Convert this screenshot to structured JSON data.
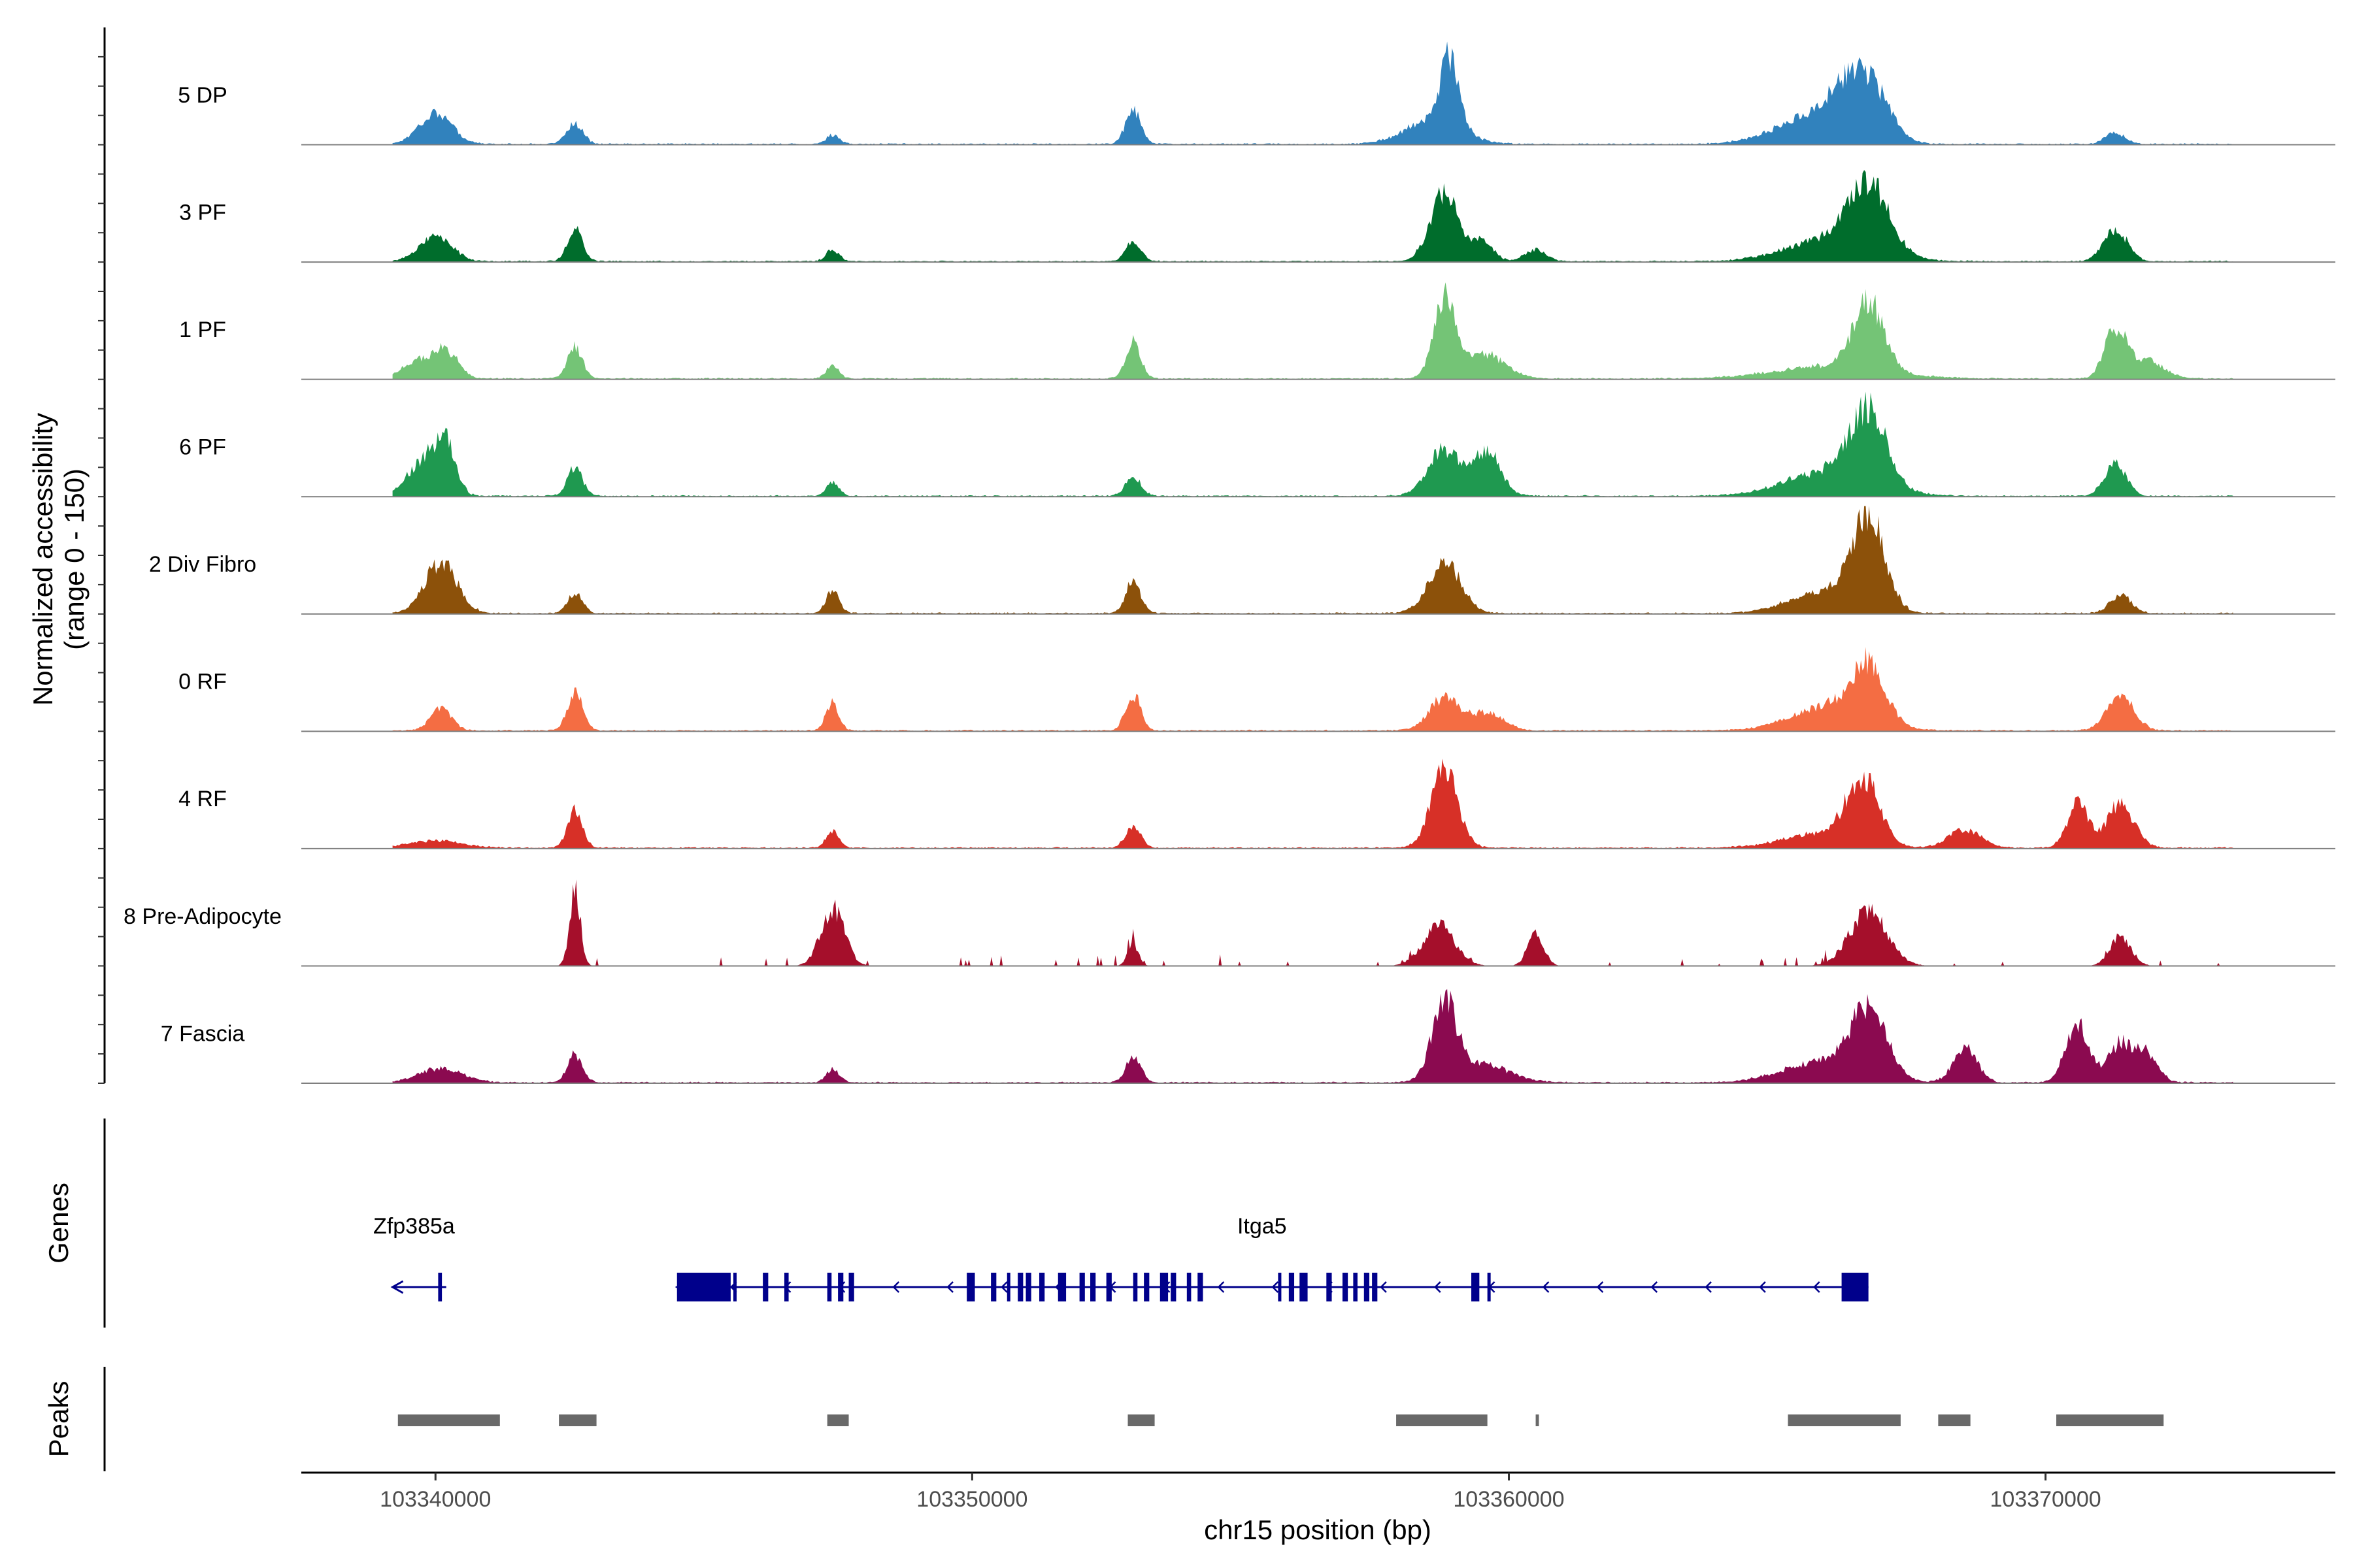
{
  "chart_data": {
    "type": "area",
    "ylabel_line1": "Normalized accessibility",
    "ylabel_line2": "(range 0 - 150)",
    "xlabel": "chr15 position (bp)",
    "xlim": [
      103337500,
      103375400
    ],
    "ylim": [
      0,
      150
    ],
    "x_ticks": [
      103340000,
      103350000,
      103360000,
      103370000
    ],
    "x_tick_labels": [
      "103340000",
      "103350000",
      "103360000",
      "103370000"
    ],
    "panel_titles": {
      "genes": "Genes",
      "peaks": "Peaks"
    },
    "tracks": [
      {
        "name": "5 DP",
        "color": "#3182bd",
        "peaks": [
          [
            103340000,
            44,
            300
          ],
          [
            103342600,
            28,
            150
          ],
          [
            103347400,
            12,
            120
          ],
          [
            103353000,
            48,
            140
          ],
          [
            103358600,
            35,
            500
          ],
          [
            103358900,
            95,
            170
          ],
          [
            103365700,
            38,
            700
          ],
          [
            103366400,
            70,
            350
          ],
          [
            103366900,
            42,
            300
          ],
          [
            103371300,
            16,
            180
          ]
        ]
      },
      {
        "name": "3 PF",
        "color": "#006d2c",
        "peaks": [
          [
            103340000,
            36,
            300
          ],
          [
            103342600,
            45,
            140
          ],
          [
            103347400,
            16,
            120
          ],
          [
            103353000,
            27,
            140
          ],
          [
            103358800,
            98,
            260
          ],
          [
            103359500,
            30,
            200
          ],
          [
            103360500,
            16,
            200
          ],
          [
            103366000,
            30,
            800
          ],
          [
            103366700,
            90,
            380
          ],
          [
            103371300,
            45,
            220
          ]
        ]
      },
      {
        "name": "1 PF",
        "color": "#74c476",
        "peaks": [
          [
            103339700,
            25,
            300
          ],
          [
            103340200,
            35,
            230
          ],
          [
            103342600,
            45,
            140
          ],
          [
            103347400,
            18,
            120
          ],
          [
            103353000,
            50,
            140
          ],
          [
            103358800,
            105,
            200
          ],
          [
            103359500,
            35,
            400
          ],
          [
            103366000,
            18,
            1000
          ],
          [
            103366700,
            95,
            280
          ],
          [
            103371300,
            70,
            200
          ],
          [
            103371900,
            25,
            300
          ]
        ]
      },
      {
        "name": "6 PF",
        "color": "#1f9950",
        "peaks": [
          [
            103339800,
            50,
            300
          ],
          [
            103340200,
            65,
            180
          ],
          [
            103342600,
            40,
            140
          ],
          [
            103347400,
            18,
            120
          ],
          [
            103353000,
            28,
            140
          ],
          [
            103358800,
            65,
            300
          ],
          [
            103359600,
            60,
            250
          ],
          [
            103366000,
            35,
            800
          ],
          [
            103366700,
            100,
            330
          ],
          [
            103371300,
            45,
            200
          ]
        ]
      },
      {
        "name": "2 Div Fibro",
        "color": "#8c510a",
        "peaks": [
          [
            103340100,
            70,
            300
          ],
          [
            103342600,
            28,
            140
          ],
          [
            103347400,
            32,
            120
          ],
          [
            103353000,
            45,
            140
          ],
          [
            103358800,
            72,
            300
          ],
          [
            103365800,
            30,
            600
          ],
          [
            103366700,
            130,
            300
          ],
          [
            103371400,
            25,
            200
          ]
        ]
      },
      {
        "name": "0 RF",
        "color": "#f46d43",
        "peaks": [
          [
            103340100,
            30,
            200
          ],
          [
            103342600,
            55,
            140
          ],
          [
            103347400,
            38,
            120
          ],
          [
            103353000,
            50,
            140
          ],
          [
            103358800,
            45,
            280
          ],
          [
            103359600,
            25,
            300
          ],
          [
            103366000,
            35,
            700
          ],
          [
            103366700,
            75,
            300
          ],
          [
            103371400,
            48,
            250
          ]
        ]
      },
      {
        "name": "4 RF",
        "color": "#d73027",
        "peaks": [
          [
            103340000,
            10,
            500
          ],
          [
            103342600,
            50,
            140
          ],
          [
            103347400,
            22,
            120
          ],
          [
            103353000,
            32,
            140
          ],
          [
            103358800,
            110,
            250
          ],
          [
            103365800,
            20,
            700
          ],
          [
            103366600,
            90,
            300
          ],
          [
            103368500,
            25,
            300
          ],
          [
            103370600,
            60,
            200
          ],
          [
            103371400,
            62,
            250
          ]
        ]
      },
      {
        "name": "8 Pre-Adipocyte",
        "color": "#a50f2b",
        "peaks": [
          [
            103342600,
            105,
            100
          ],
          [
            103347400,
            80,
            220
          ],
          [
            103353000,
            30,
            100
          ],
          [
            103358700,
            55,
            300
          ],
          [
            103360500,
            45,
            150
          ],
          [
            103366700,
            75,
            350
          ],
          [
            103371400,
            40,
            200
          ]
        ]
      },
      {
        "name": "7 Fascia",
        "color": "#8b0a50",
        "peaks": [
          [
            103340100,
            20,
            400
          ],
          [
            103342600,
            40,
            140
          ],
          [
            103347400,
            18,
            120
          ],
          [
            103353000,
            35,
            140
          ],
          [
            103358800,
            105,
            230
          ],
          [
            103359500,
            25,
            500
          ],
          [
            103365800,
            28,
            700
          ],
          [
            103366700,
            90,
            350
          ],
          [
            103368500,
            48,
            220
          ],
          [
            103370600,
            80,
            220
          ],
          [
            103371400,
            55,
            220
          ],
          [
            103371900,
            40,
            200
          ]
        ]
      }
    ],
    "genes": [
      {
        "name": "Zfp385a",
        "start": 103339200,
        "end": 103340200,
        "strand": "-",
        "label_x": 103339600,
        "exons": [
          [
            103340050,
            103340120
          ]
        ]
      },
      {
        "name": "Itga5",
        "start": 103344500,
        "end": 103366700,
        "strand": "-",
        "label_x": 103355400,
        "exons": [
          [
            103344500,
            103345500
          ],
          [
            103345550,
            103345600
          ],
          [
            103346100,
            103346200
          ],
          [
            103346500,
            103346580
          ],
          [
            103347300,
            103347380
          ],
          [
            103347500,
            103347600
          ],
          [
            103347700,
            103347800
          ],
          [
            103349900,
            103350050
          ],
          [
            103350350,
            103350450
          ],
          [
            103350650,
            103350700
          ],
          [
            103350850,
            103350950
          ],
          [
            103351000,
            103351100
          ],
          [
            103351250,
            103351350
          ],
          [
            103351600,
            103351750
          ],
          [
            103352000,
            103352100
          ],
          [
            103352200,
            103352300
          ],
          [
            103352500,
            103352600
          ],
          [
            103353000,
            103353080
          ],
          [
            103353200,
            103353300
          ],
          [
            103353500,
            103353650
          ],
          [
            103353700,
            103353800
          ],
          [
            103354000,
            103354080
          ],
          [
            103354200,
            103354300
          ],
          [
            103355700,
            103355750
          ],
          [
            103355900,
            103356000
          ],
          [
            103356100,
            103356250
          ],
          [
            103356600,
            103356700
          ],
          [
            103356900,
            103357000
          ],
          [
            103357100,
            103357180
          ],
          [
            103357300,
            103357400
          ],
          [
            103357450,
            103357550
          ],
          [
            103359300,
            103359450
          ],
          [
            103359600,
            103359650
          ],
          [
            103366200,
            103366700
          ]
        ]
      }
    ],
    "peak_regions": [
      [
        103339300,
        103341200
      ],
      [
        103342300,
        103343000
      ],
      [
        103347300,
        103347700
      ],
      [
        103352900,
        103353400
      ],
      [
        103357900,
        103359600
      ],
      [
        103360500,
        103360560
      ],
      [
        103365200,
        103367300
      ],
      [
        103368000,
        103368600
      ],
      [
        103370200,
        103372200
      ]
    ]
  }
}
